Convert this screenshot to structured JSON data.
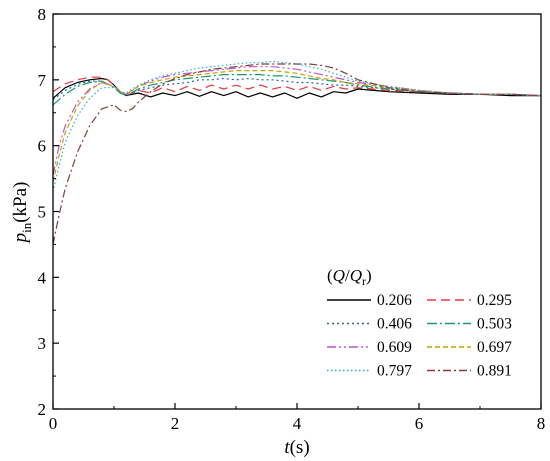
{
  "chart_data": {
    "type": "line",
    "xlabel": {
      "var": "t",
      "unit": "(s)"
    },
    "ylabel": {
      "var": "p",
      "sub": "in",
      "unit": "(kPa)"
    },
    "xlim": [
      0,
      8
    ],
    "ylim": [
      2,
      8
    ],
    "xticks": [
      0,
      2,
      4,
      6,
      8
    ],
    "yticks": [
      2,
      3,
      4,
      5,
      6,
      7,
      8
    ],
    "grid": false,
    "legend": {
      "title_parts": [
        "(",
        "Q",
        "/",
        "Q",
        "r",
        ")"
      ],
      "placement": "bottom-right"
    },
    "series": [
      {
        "name": "0.206",
        "color": "#000000",
        "dash": "solid",
        "x": [
          0,
          0.2,
          0.4,
          0.6,
          0.8,
          0.9,
          1.0,
          1.1,
          1.2,
          1.4,
          1.6,
          1.8,
          2.0,
          2.2,
          2.4,
          2.6,
          2.8,
          3.0,
          3.2,
          3.4,
          3.6,
          3.8,
          4.0,
          4.2,
          4.4,
          4.6,
          4.8,
          5.0,
          5.5,
          6.0,
          6.5,
          7.0,
          7.5,
          8.0
        ],
        "y": [
          6.72,
          6.88,
          6.96,
          7.0,
          7.02,
          7.0,
          6.92,
          6.82,
          6.76,
          6.8,
          6.74,
          6.8,
          6.76,
          6.82,
          6.75,
          6.82,
          6.76,
          6.82,
          6.74,
          6.8,
          6.74,
          6.8,
          6.72,
          6.8,
          6.74,
          6.82,
          6.8,
          6.86,
          6.82,
          6.8,
          6.78,
          6.78,
          6.76,
          6.76
        ]
      },
      {
        "name": "0.295",
        "color": "#e8383d",
        "dash": "9,5",
        "x": [
          0,
          0.2,
          0.4,
          0.6,
          0.8,
          0.9,
          1.0,
          1.1,
          1.2,
          1.4,
          1.6,
          1.8,
          2.0,
          2.2,
          2.4,
          2.6,
          2.8,
          3.0,
          3.2,
          3.4,
          3.6,
          3.8,
          4.0,
          4.2,
          4.4,
          4.6,
          4.8,
          5.0,
          5.5,
          6.0,
          6.5,
          7.0,
          7.5,
          8.0
        ],
        "y": [
          6.82,
          6.94,
          7.0,
          7.04,
          7.04,
          7.0,
          6.92,
          6.82,
          6.76,
          6.84,
          6.8,
          6.88,
          6.82,
          6.9,
          6.84,
          6.92,
          6.86,
          6.92,
          6.86,
          6.92,
          6.86,
          6.9,
          6.84,
          6.9,
          6.84,
          6.9,
          6.86,
          6.88,
          6.84,
          6.82,
          6.8,
          6.78,
          6.78,
          6.76
        ]
      },
      {
        "name": "0.406",
        "color": "#2a5db0",
        "dash": "2,3",
        "x": [
          0,
          0.2,
          0.4,
          0.6,
          0.8,
          1.0,
          1.1,
          1.2,
          1.4,
          1.6,
          1.8,
          2.0,
          2.2,
          2.4,
          2.6,
          2.8,
          3.0,
          3.2,
          3.4,
          3.6,
          3.8,
          4.0,
          4.2,
          4.4,
          4.6,
          4.8,
          5.0,
          5.5,
          6.0,
          6.5,
          7.0,
          7.5,
          8.0
        ],
        "y": [
          6.7,
          6.84,
          6.93,
          6.98,
          6.98,
          6.88,
          6.8,
          6.76,
          6.84,
          6.88,
          6.92,
          6.94,
          6.96,
          7.0,
          7.0,
          7.02,
          7.0,
          7.02,
          7.0,
          7.0,
          6.98,
          6.96,
          6.96,
          6.94,
          6.92,
          6.92,
          6.9,
          6.86,
          6.82,
          6.8,
          6.78,
          6.78,
          6.76
        ]
      },
      {
        "name": "0.503",
        "color": "#1a9a6a",
        "dash": "10,3,2,3",
        "x": [
          0,
          0.2,
          0.4,
          0.6,
          0.8,
          1.0,
          1.1,
          1.2,
          1.4,
          1.6,
          1.8,
          2.0,
          2.2,
          2.4,
          2.6,
          2.8,
          3.0,
          3.2,
          3.4,
          3.6,
          3.8,
          4.0,
          4.2,
          4.4,
          4.6,
          4.8,
          5.0,
          5.5,
          6.0,
          6.5,
          7.0,
          7.5,
          8.0
        ],
        "y": [
          6.62,
          6.78,
          6.9,
          6.96,
          6.98,
          6.88,
          6.8,
          6.76,
          6.86,
          6.92,
          6.96,
          7.0,
          7.02,
          7.04,
          7.06,
          7.08,
          7.08,
          7.08,
          7.08,
          7.06,
          7.06,
          7.04,
          7.02,
          7.0,
          6.98,
          6.96,
          6.92,
          6.86,
          6.82,
          6.8,
          6.78,
          6.78,
          6.76
        ]
      },
      {
        "name": "0.609",
        "color": "#c34fd6",
        "dash": "9,3,2,3,2,3",
        "x": [
          0,
          0.1,
          0.2,
          0.4,
          0.6,
          0.8,
          1.0,
          1.1,
          1.2,
          1.4,
          1.6,
          1.8,
          2.0,
          2.2,
          2.4,
          2.6,
          2.8,
          3.0,
          3.2,
          3.4,
          3.6,
          3.8,
          4.0,
          4.2,
          4.4,
          4.6,
          4.8,
          5.0,
          5.5,
          6.0,
          6.5,
          7.0,
          7.5,
          8.0
        ],
        "y": [
          5.55,
          6.0,
          6.3,
          6.66,
          6.86,
          6.96,
          6.9,
          6.82,
          6.78,
          6.9,
          6.98,
          7.04,
          7.08,
          7.1,
          7.12,
          7.14,
          7.16,
          7.18,
          7.2,
          7.2,
          7.2,
          7.18,
          7.16,
          7.12,
          7.08,
          7.04,
          7.0,
          6.96,
          6.9,
          6.84,
          6.8,
          6.78,
          6.78,
          6.76
        ]
      },
      {
        "name": "0.697",
        "color": "#c9a400",
        "dash": "5,3",
        "x": [
          0,
          0.1,
          0.2,
          0.4,
          0.6,
          0.8,
          1.0,
          1.1,
          1.2,
          1.4,
          1.6,
          1.8,
          2.0,
          2.2,
          2.4,
          2.6,
          2.8,
          3.0,
          3.2,
          3.4,
          3.6,
          3.8,
          4.0,
          4.2,
          4.4,
          4.6,
          4.8,
          5.0,
          5.5,
          6.0,
          6.5,
          7.0,
          7.5,
          8.0
        ],
        "y": [
          5.45,
          5.85,
          6.2,
          6.6,
          6.84,
          6.96,
          6.9,
          6.82,
          6.78,
          6.9,
          6.96,
          7.0,
          7.04,
          7.06,
          7.08,
          7.1,
          7.12,
          7.14,
          7.14,
          7.14,
          7.14,
          7.12,
          7.1,
          7.06,
          7.02,
          7.0,
          6.96,
          6.94,
          6.88,
          6.84,
          6.8,
          6.78,
          6.78,
          6.76
        ]
      },
      {
        "name": "0.797",
        "color": "#1fb8c9",
        "dash": "1.5,2.5",
        "x": [
          0,
          0.1,
          0.2,
          0.4,
          0.6,
          0.8,
          1.0,
          1.1,
          1.2,
          1.4,
          1.6,
          1.8,
          2.0,
          2.2,
          2.4,
          2.6,
          2.8,
          3.0,
          3.2,
          3.4,
          3.6,
          3.8,
          4.0,
          4.2,
          4.4,
          4.6,
          4.8,
          5.0,
          5.5,
          6.0,
          6.5,
          7.0,
          7.5,
          8.0
        ],
        "y": [
          5.3,
          5.7,
          6.05,
          6.45,
          6.72,
          6.88,
          6.88,
          6.82,
          6.8,
          6.92,
          7.0,
          7.06,
          7.1,
          7.14,
          7.18,
          7.2,
          7.22,
          7.24,
          7.26,
          7.26,
          7.28,
          7.26,
          7.24,
          7.2,
          7.16,
          7.1,
          7.04,
          6.98,
          6.9,
          6.84,
          6.8,
          6.78,
          6.78,
          6.76
        ]
      },
      {
        "name": "0.891",
        "color": "#8a3a3a",
        "dash": "8,3,2,3",
        "x": [
          0,
          0.1,
          0.2,
          0.4,
          0.6,
          0.8,
          1.0,
          1.1,
          1.2,
          1.3,
          1.4,
          1.6,
          1.8,
          2.0,
          2.2,
          2.4,
          2.6,
          2.8,
          3.0,
          3.2,
          3.4,
          3.6,
          3.8,
          4.0,
          4.2,
          4.4,
          4.6,
          4.8,
          5.0,
          5.5,
          6.0,
          6.5,
          7.0,
          7.5,
          8.0
        ],
        "y": [
          4.5,
          4.95,
          5.35,
          5.9,
          6.3,
          6.56,
          6.62,
          6.54,
          6.52,
          6.56,
          6.66,
          6.82,
          6.94,
          7.02,
          7.08,
          7.12,
          7.16,
          7.18,
          7.2,
          7.22,
          7.24,
          7.24,
          7.24,
          7.24,
          7.24,
          7.22,
          7.18,
          7.1,
          7.0,
          6.88,
          6.82,
          6.8,
          6.78,
          6.78,
          6.76
        ]
      }
    ]
  }
}
